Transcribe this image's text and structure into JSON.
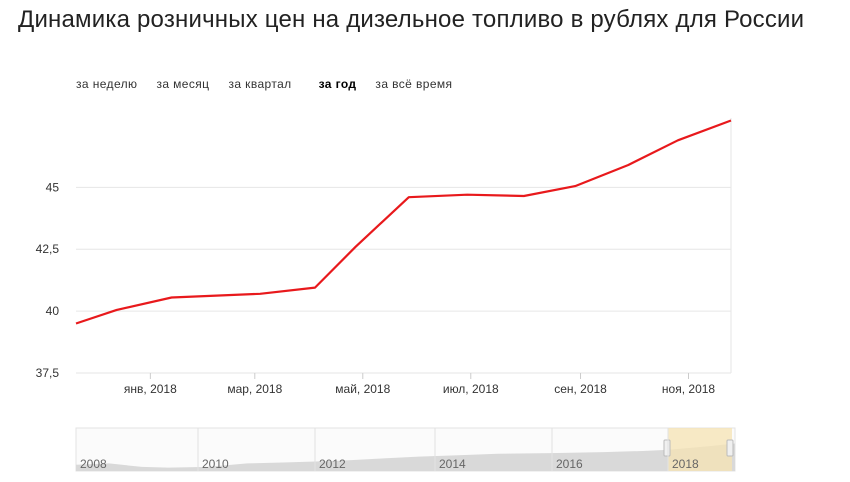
{
  "title": "Динамика розничных цен на дизельное топливо в рублях для России",
  "period_tabs": [
    {
      "label": "за неделю",
      "active": false
    },
    {
      "label": "за месяц",
      "active": false
    },
    {
      "label": "за квартал",
      "active": false
    },
    {
      "label": "за год",
      "active": true
    },
    {
      "label": "за всё время",
      "active": false
    }
  ],
  "colors": {
    "series": "#e8191c",
    "grid": "#e6e6e6",
    "axis_text": "#333333",
    "navigator_fill": "#d9d9d9",
    "navigator_selection": "#f5e3b3"
  },
  "chart_data": {
    "type": "line",
    "title": "Динамика розничных цен на дизельное топливо в рублях для России",
    "xlabel": "",
    "ylabel": "",
    "x": [
      "2017-11-20",
      "2017-12-13",
      "2018-01-13",
      "2018-03-04",
      "2018-04-04",
      "2018-04-27",
      "2018-05-27",
      "2018-06-29",
      "2018-07-31",
      "2018-08-29",
      "2018-09-28",
      "2018-10-26",
      "2018-11-25"
    ],
    "series": [
      {
        "values": [
          39.5,
          40.05,
          40.55,
          40.7,
          40.95,
          42.6,
          44.6,
          44.7,
          44.65,
          45.05,
          45.9,
          46.9,
          47.7
        ]
      }
    ],
    "ylim": [
      37.5,
      47.8
    ],
    "yticks": [
      37.5,
      40,
      42.5,
      45
    ],
    "ytick_labels": [
      "37,5",
      "40",
      "42,5",
      "45"
    ],
    "xtick_labels": [
      "янв, 2018",
      "мар, 2018",
      "май, 2018",
      "июл, 2018",
      "сен, 2018",
      "ноя, 2018"
    ],
    "xticks": [
      "2018-01-01",
      "2018-03-01",
      "2018-05-01",
      "2018-07-01",
      "2018-09-01",
      "2018-11-01"
    ],
    "grid": true,
    "legend": "none",
    "navigator": {
      "year_labels": [
        "2008",
        "2010",
        "2012",
        "2014",
        "2016",
        "2018"
      ],
      "selected_range": [
        "2017-11-20",
        "2018-11-25"
      ]
    }
  }
}
